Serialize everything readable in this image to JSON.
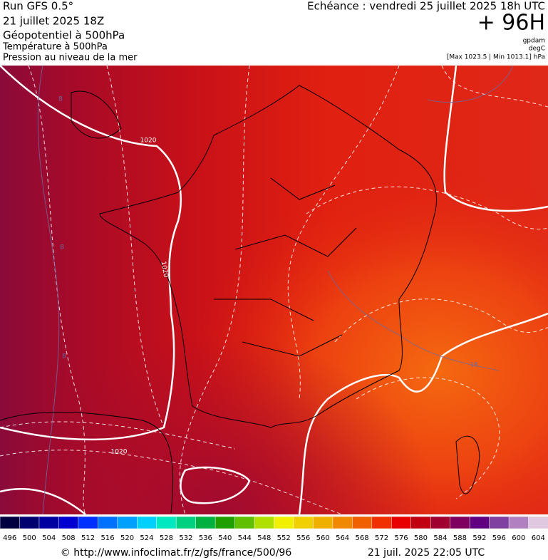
{
  "header": {
    "run": "Run GFS 0.5°",
    "run_date": "21 juillet 2025 18Z",
    "field1": "Géopotentiel à 500hPa",
    "field2": "Température à 500hPa",
    "field3": "Pression au niveau de la mer",
    "valid": "Echéance : vendredi 25 juillet 2025 18h UTC",
    "lead": "+ 96H",
    "unit1": "gpdam",
    "unit2": "degC",
    "range": "[Max 1023.5 | Min 1013.1] hPa"
  },
  "map": {
    "contour_labels": [
      "1020",
      "1020",
      "1020",
      "8",
      "8",
      "8",
      "16"
    ]
  },
  "colorbar": {
    "labels": [
      496,
      500,
      504,
      508,
      512,
      516,
      520,
      524,
      528,
      532,
      536,
      540,
      544,
      548,
      552,
      556,
      560,
      564,
      568,
      572,
      576,
      580,
      584,
      588,
      592,
      596,
      600,
      604
    ],
    "colors": [
      "#000040",
      "#000070",
      "#0000a0",
      "#0000d0",
      "#0030ff",
      "#0070ff",
      "#00a0ff",
      "#00d0ff",
      "#00e8c0",
      "#00d080",
      "#00b040",
      "#20a000",
      "#60c000",
      "#b0e000",
      "#f0f000",
      "#f0d000",
      "#f0b000",
      "#f08800",
      "#f06000",
      "#f03000",
      "#e80000",
      "#c00010",
      "#a00030",
      "#800060",
      "#600080",
      "#8040a0",
      "#b080c0",
      "#e0c8e0"
    ]
  },
  "footer": {
    "url": "© http://www.infoclimat.fr/z/gfs/france/500/96",
    "timestamp": "21 juil. 2025 22:05 UTC"
  }
}
